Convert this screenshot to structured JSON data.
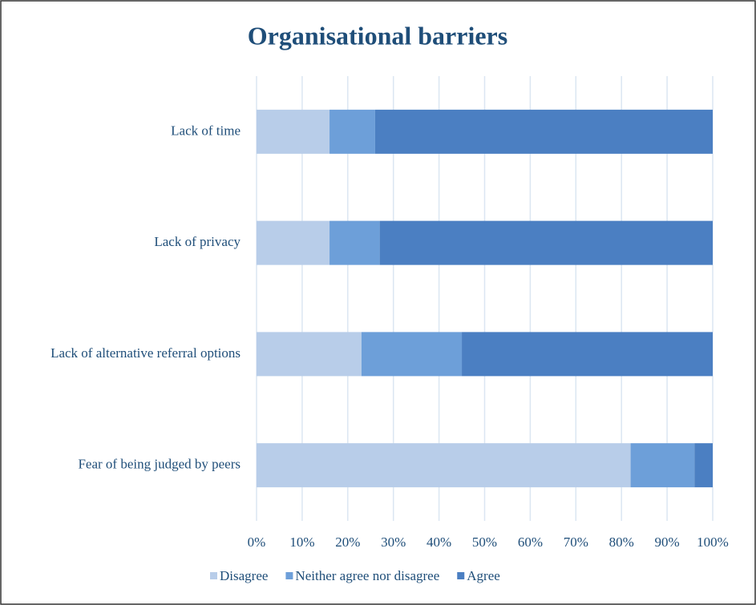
{
  "chart_data": {
    "type": "stacked-bar-horizontal",
    "title": "Organisational barriers",
    "categories": [
      "Lack of time",
      "Lack of privacy",
      "Lack of alternative referral options",
      "Fear of being judged by peers"
    ],
    "series": [
      {
        "name": "Disagree",
        "color": "#b8cde9",
        "values": [
          16,
          16,
          23,
          82
        ]
      },
      {
        "name": "Neither agree nor disagree",
        "color": "#6d9fd9",
        "values": [
          10,
          11,
          22,
          14
        ]
      },
      {
        "name": "Agree",
        "color": "#4b7fc2",
        "values": [
          74,
          73,
          55,
          4
        ]
      }
    ],
    "xlim": [
      0,
      100
    ],
    "xticks": [
      {
        "value": 0,
        "label": "0%"
      },
      {
        "value": 10,
        "label": "10%"
      },
      {
        "value": 20,
        "label": "20%"
      },
      {
        "value": 30,
        "label": "30%"
      },
      {
        "value": 40,
        "label": "40%"
      },
      {
        "value": 50,
        "label": "50%"
      },
      {
        "value": 60,
        "label": "60%"
      },
      {
        "value": 70,
        "label": "70%"
      },
      {
        "value": 80,
        "label": "80%"
      },
      {
        "value": 90,
        "label": "90%"
      },
      {
        "value": 100,
        "label": "100%"
      }
    ],
    "grid": true,
    "legend": "bottom"
  }
}
